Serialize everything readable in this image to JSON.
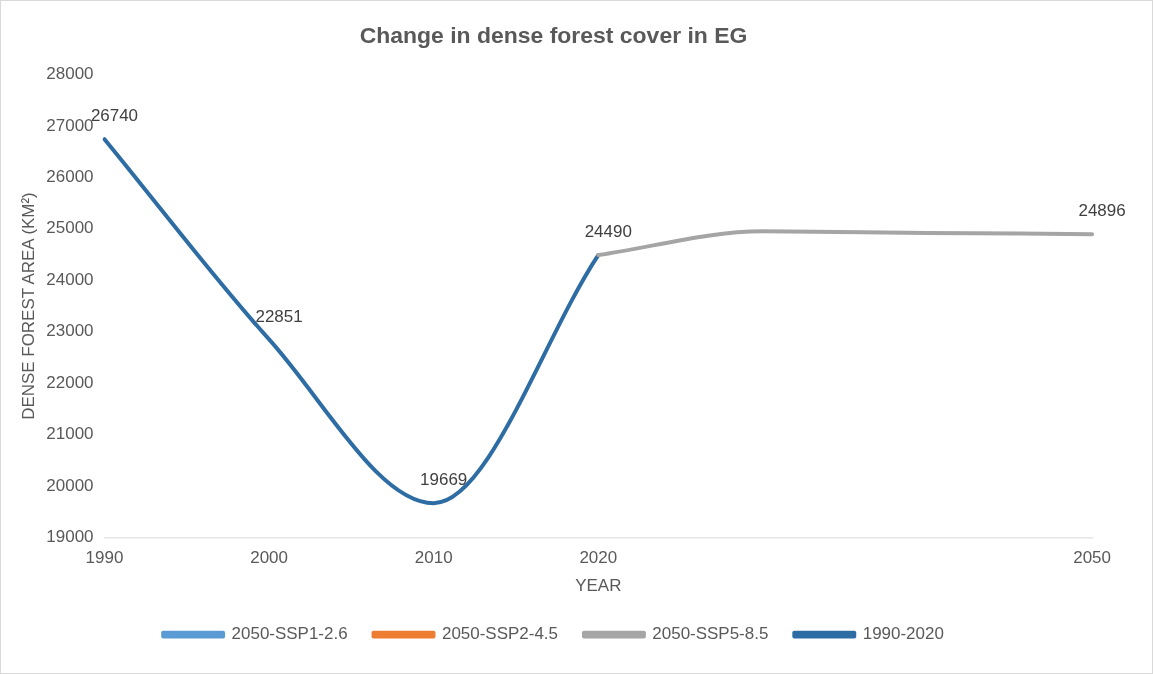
{
  "chart_data": {
    "type": "line",
    "title": "Change in dense forest cover in EG",
    "xlabel": "YEAR",
    "ylabel": "DENSE FOREST AREA (KM²)",
    "categories": [
      "1990",
      "2000",
      "2010",
      "2020",
      null,
      null,
      "2050"
    ],
    "ylim": [
      19000,
      28000
    ],
    "yticks": [
      19000,
      20000,
      21000,
      22000,
      23000,
      24000,
      25000,
      26000,
      27000,
      28000
    ],
    "grid": false,
    "legend": "bottom",
    "marker": "none",
    "line_style": "solid",
    "series": [
      {
        "name": "2050-SSP1-2.6",
        "color": "#5b9bd5",
        "values": [
          null,
          null,
          null,
          null,
          null,
          null,
          null
        ]
      },
      {
        "name": "2050-SSP2-4.5",
        "color": "#ed7d31",
        "values": [
          null,
          null,
          null,
          null,
          null,
          null,
          null
        ]
      },
      {
        "name": "2050-SSP5-8.5",
        "color": "#a5a5a5",
        "values": [
          null,
          null,
          null,
          24490,
          24950,
          24920,
          24896
        ],
        "value_labels": [
          null,
          null,
          null,
          null,
          null,
          null,
          "24896"
        ]
      },
      {
        "name": "1990-2020",
        "color": "#2e6ca4",
        "values": [
          26740,
          22851,
          19669,
          24490,
          null,
          null,
          null
        ],
        "value_labels": [
          "26740",
          "22851",
          "19669",
          "24490",
          null,
          null,
          null
        ]
      }
    ]
  }
}
